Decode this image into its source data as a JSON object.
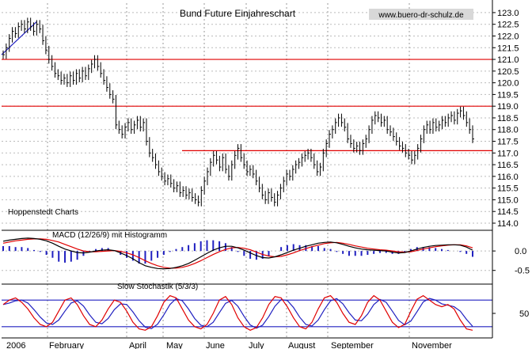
{
  "chart_data": {
    "type": "candlestick",
    "title": "Bund Future Einjahreschart",
    "watermark": "www.buero-dr-schulz.de",
    "source_label": "Hoppenstedt Charts",
    "months": [
      "2006",
      "February",
      "April",
      "May",
      "June",
      "July",
      "August",
      "September",
      "November"
    ],
    "price_panel": {
      "ylim": [
        114.0,
        123.2
      ],
      "yticks": [
        "114.0",
        "114.5",
        "115.0",
        "115.5",
        "116.0",
        "116.5",
        "117.0",
        "117.5",
        "118.0",
        "118.5",
        "119.0",
        "119.5",
        "120.0",
        "120.5",
        "121.0",
        "121.5",
        "122.0",
        "122.5",
        "123.0"
      ],
      "horizontal_lines": [
        121.0,
        119.0,
        117.1
      ],
      "line_color": "#e00000",
      "closes": [
        121.2,
        121.5,
        121.9,
        122.2,
        122.1,
        122.4,
        122.5,
        122.3,
        122.6,
        122.4,
        122.2,
        122.5,
        122.3,
        121.8,
        121.4,
        121.0,
        120.7,
        120.4,
        120.3,
        120.1,
        120.2,
        120.0,
        120.3,
        120.1,
        120.4,
        120.2,
        120.5,
        120.3,
        120.6,
        120.8,
        121.0,
        120.7,
        120.4,
        120.1,
        119.8,
        119.5,
        119.3,
        118.2,
        118.0,
        117.8,
        118.1,
        118.3,
        118.0,
        118.2,
        118.4,
        118.1,
        118.3,
        117.5,
        117.0,
        116.8,
        116.5,
        116.2,
        116.0,
        115.8,
        115.9,
        115.7,
        115.5,
        115.6,
        115.3,
        115.4,
        115.2,
        115.3,
        115.1,
        115.0,
        114.9,
        115.4,
        115.8,
        116.2,
        116.6,
        116.9,
        116.7,
        116.4,
        116.8,
        116.3,
        116.0,
        116.5,
        116.9,
        117.2,
        116.8,
        116.5,
        116.2,
        116.3,
        116.1,
        115.8,
        115.5,
        115.2,
        115.0,
        115.3,
        115.1,
        114.9,
        115.2,
        115.5,
        115.8,
        116.1,
        116.0,
        116.3,
        116.5,
        116.6,
        116.8,
        116.9,
        117.0,
        116.8,
        116.5,
        116.2,
        116.4,
        117.0,
        117.4,
        117.8,
        118.0,
        118.3,
        118.5,
        118.3,
        118.1,
        117.6,
        117.4,
        117.2,
        117.3,
        117.1,
        117.4,
        117.6,
        118.0,
        118.4,
        118.6,
        118.5,
        118.3,
        118.4,
        118.0,
        117.9,
        117.7,
        117.5,
        117.3,
        117.2,
        117.0,
        116.9,
        116.7,
        116.9,
        117.2,
        117.6,
        118.0,
        118.2,
        118.0,
        118.3,
        118.1,
        118.2,
        118.4,
        118.3,
        118.5,
        118.6,
        118.4,
        118.7,
        118.8,
        118.6,
        118.3,
        118.0,
        117.6
      ]
    },
    "macd_panel": {
      "label": "MACD (12/26/9) mit Histogramm",
      "ylim": [
        -0.75,
        0.45
      ],
      "yticks": [
        "0.0",
        "-0.5"
      ],
      "macd_color": "#000000",
      "signal_color": "#e00000",
      "histogram_color": "#2020c0",
      "macd": [
        0.25,
        0.28,
        0.3,
        0.32,
        0.33,
        0.32,
        0.3,
        0.26,
        0.2,
        0.12,
        0.05,
        0.0,
        -0.04,
        -0.05,
        -0.03,
        0.0,
        0.02,
        0.03,
        0.01,
        -0.05,
        -0.12,
        -0.2,
        -0.3,
        -0.38,
        -0.42,
        -0.45,
        -0.46,
        -0.45,
        -0.42,
        -0.38,
        -0.32,
        -0.24,
        -0.15,
        -0.06,
        0.02,
        0.08,
        0.12,
        0.12,
        0.08,
        0.02,
        -0.05,
        -0.12,
        -0.17,
        -0.18,
        -0.15,
        -0.1,
        -0.04,
        0.02,
        0.07,
        0.12,
        0.16,
        0.2,
        0.22,
        0.23,
        0.21,
        0.17,
        0.12,
        0.08,
        0.05,
        0.03,
        0.02,
        0.01,
        0.0,
        -0.03,
        -0.05,
        -0.04,
        0.0,
        0.05,
        0.09,
        0.12,
        0.14,
        0.15,
        0.16,
        0.16,
        0.15,
        0.1,
        0.02
      ],
      "signal": [
        0.2,
        0.23,
        0.26,
        0.28,
        0.3,
        0.31,
        0.31,
        0.3,
        0.27,
        0.23,
        0.17,
        0.11,
        0.05,
        0.0,
        -0.02,
        -0.02,
        -0.01,
        0.0,
        0.01,
        -0.01,
        -0.05,
        -0.1,
        -0.17,
        -0.25,
        -0.32,
        -0.38,
        -0.42,
        -0.44,
        -0.44,
        -0.42,
        -0.38,
        -0.32,
        -0.25,
        -0.17,
        -0.09,
        -0.02,
        0.04,
        0.08,
        0.09,
        0.07,
        0.03,
        -0.03,
        -0.09,
        -0.13,
        -0.15,
        -0.14,
        -0.1,
        -0.05,
        0.01,
        0.06,
        0.11,
        0.15,
        0.19,
        0.21,
        0.22,
        0.2,
        0.17,
        0.13,
        0.1,
        0.07,
        0.05,
        0.03,
        0.02,
        0.0,
        -0.02,
        -0.03,
        -0.02,
        0.01,
        0.05,
        0.08,
        0.11,
        0.13,
        0.15,
        0.16,
        0.16,
        0.13,
        0.08
      ]
    },
    "stoch_panel": {
      "label": "Slow Stochastik (5/3/3)",
      "ylim": [
        0,
        100
      ],
      "yticks": [
        "50"
      ],
      "levels": [
        80,
        20
      ],
      "k_color": "#e00000",
      "d_color": "#2020c0",
      "k": [
        70,
        80,
        85,
        75,
        60,
        40,
        25,
        20,
        30,
        55,
        80,
        85,
        70,
        45,
        25,
        20,
        35,
        60,
        80,
        75,
        55,
        30,
        15,
        12,
        20,
        45,
        75,
        90,
        85,
        60,
        35,
        20,
        15,
        25,
        50,
        80,
        88,
        70,
        40,
        20,
        12,
        18,
        40,
        70,
        88,
        85,
        65,
        40,
        20,
        15,
        30,
        60,
        85,
        90,
        75,
        50,
        30,
        25,
        45,
        75,
        90,
        80,
        55,
        30,
        18,
        25,
        55,
        82,
        90,
        80,
        70,
        65,
        70,
        60,
        35,
        15,
        12
      ]
    }
  }
}
